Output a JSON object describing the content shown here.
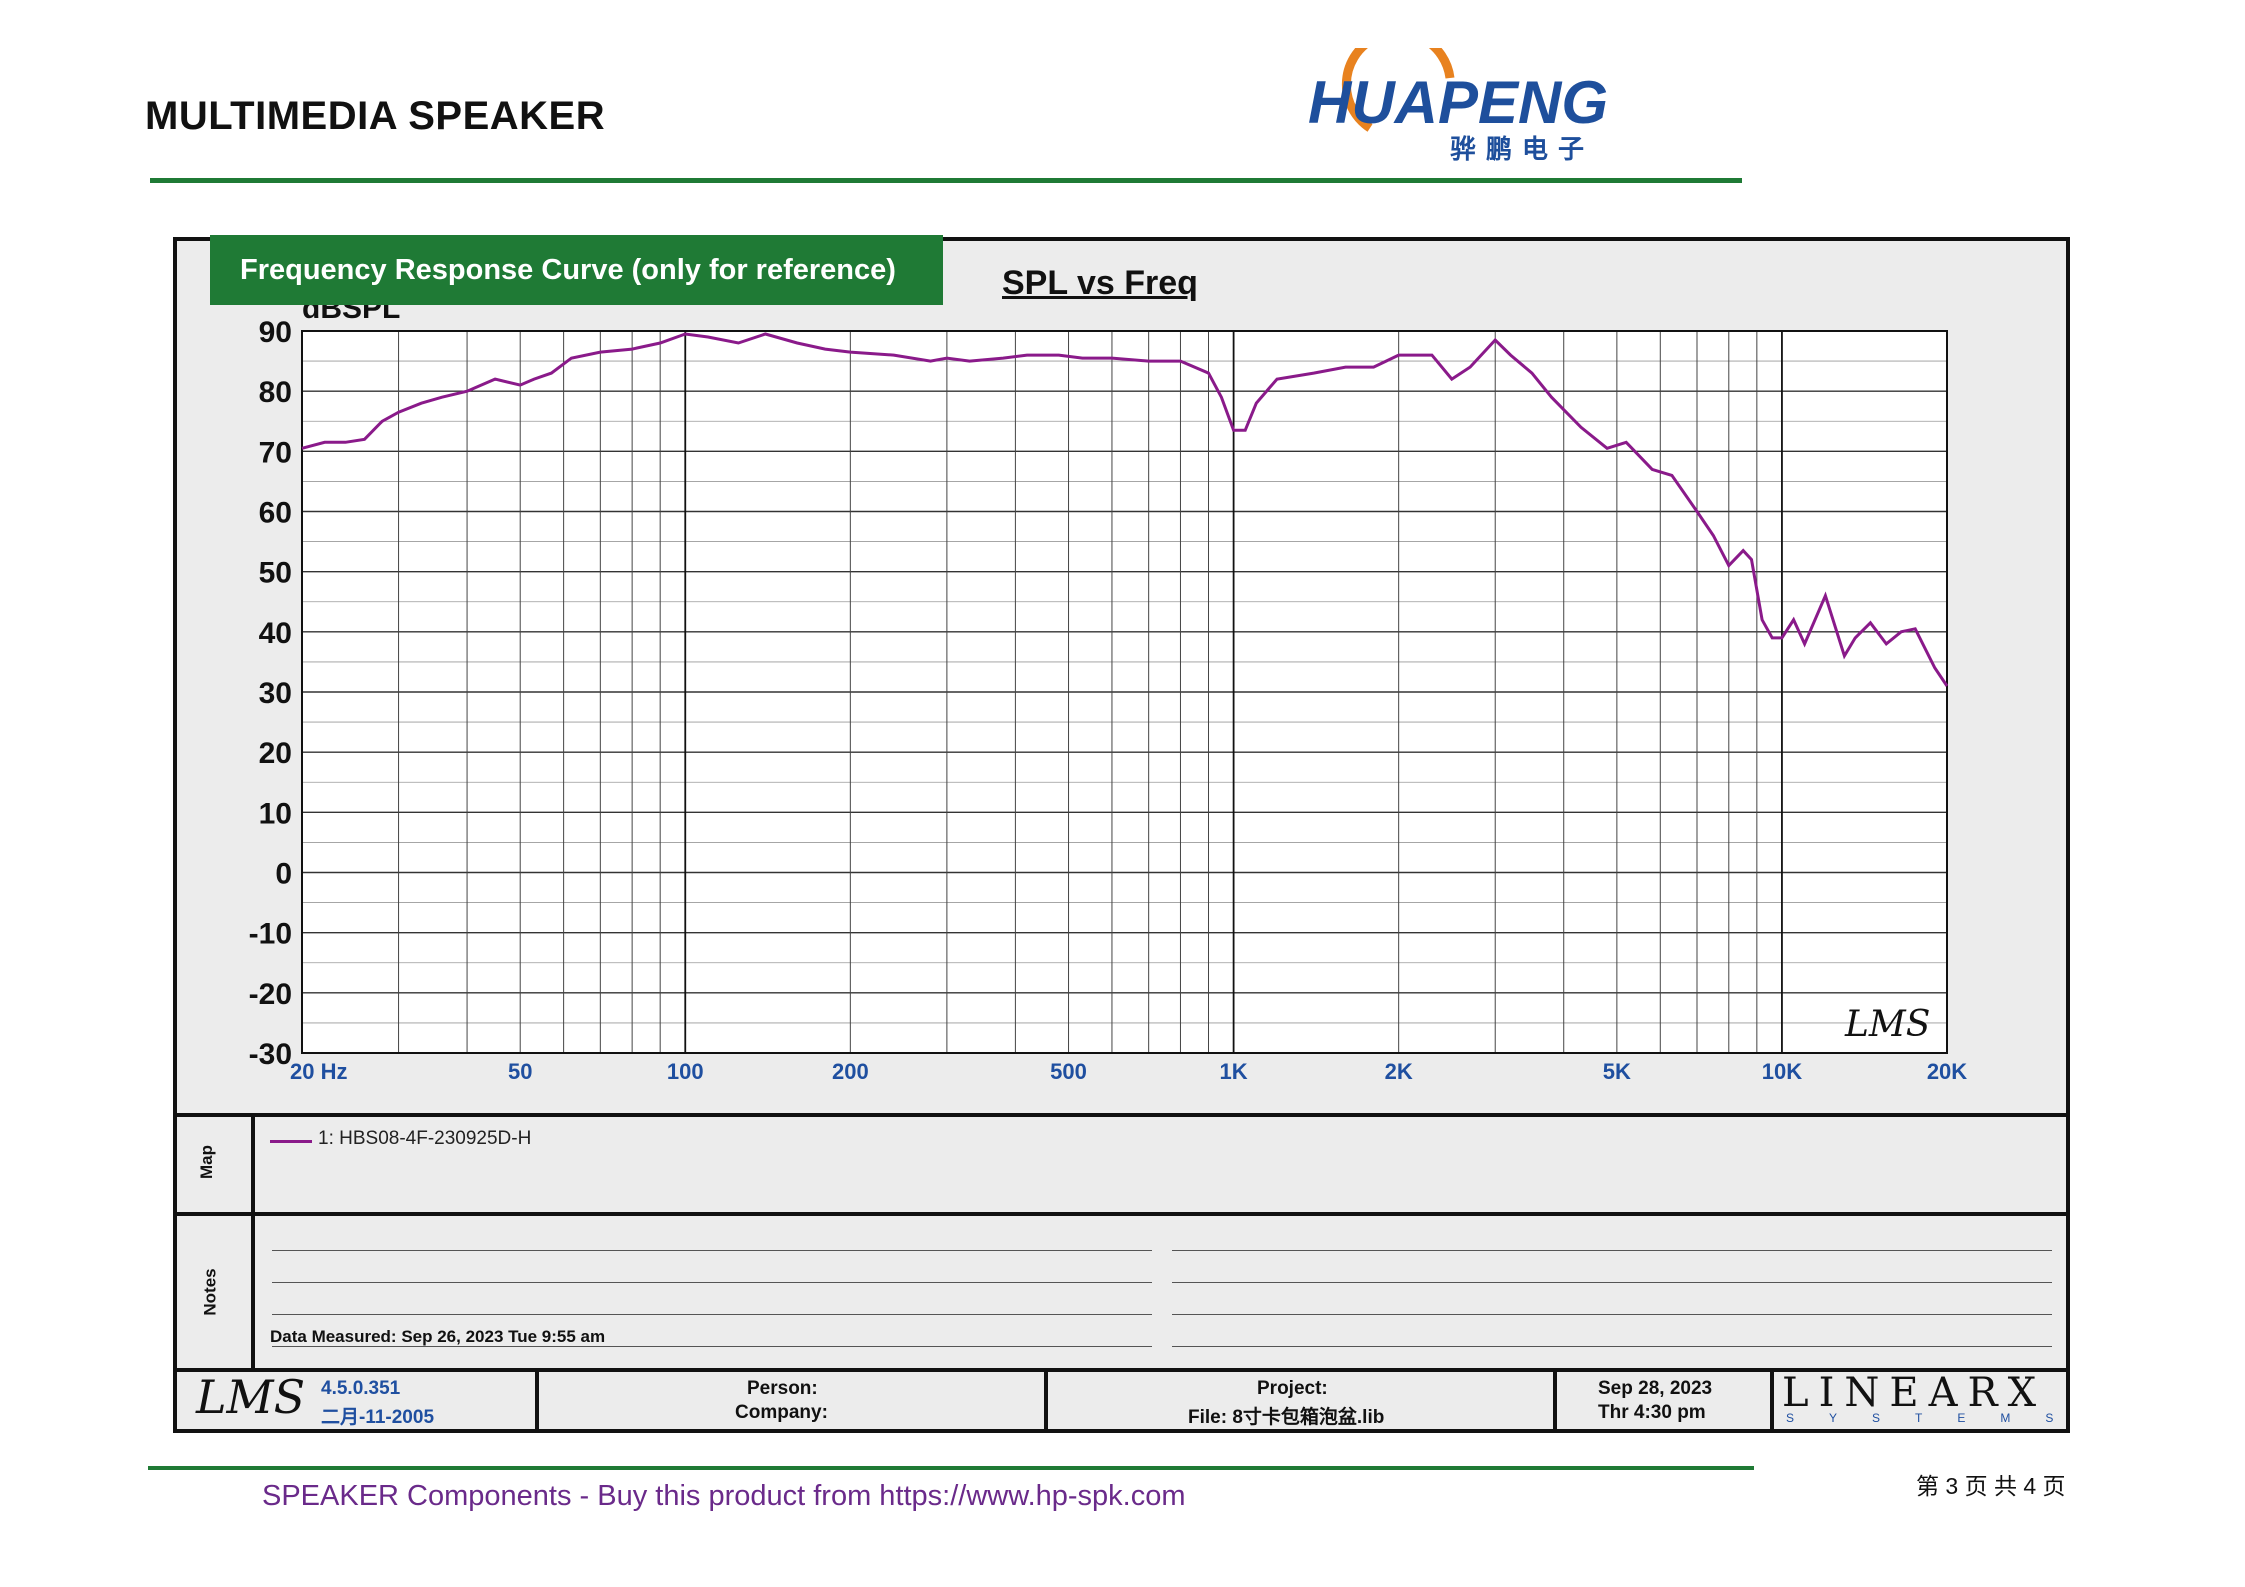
{
  "header": {
    "title": "MULTIMEDIA SPEAKER",
    "logo_text": "HUAPENG",
    "logo_cn": "骅鹏电子"
  },
  "badge": {
    "label": "Frequency Response Curve (only for reference)"
  },
  "chart_data": {
    "type": "line",
    "title": "SPL vs Freq",
    "ylabel": "dBSPL",
    "xlabel": "",
    "x_scale": "log",
    "xlim": [
      20,
      20000
    ],
    "ylim": [
      -30,
      90
    ],
    "x_tick_labels": [
      "20  Hz",
      "50",
      "100",
      "200",
      "500",
      "1K",
      "2K",
      "5K",
      "10K",
      "20K"
    ],
    "y_tick_labels": [
      "90",
      "80",
      "70",
      "60",
      "50",
      "40",
      "30",
      "20",
      "10",
      "0",
      "-10",
      "-20",
      "-30"
    ],
    "grid": true,
    "series": [
      {
        "name": "1: HBS08-4F-230925D-H",
        "color": "#8a1a8a",
        "x": [
          20,
          22,
          24,
          26,
          28,
          30,
          33,
          36,
          40,
          45,
          50,
          53,
          57,
          62,
          70,
          80,
          90,
          100,
          110,
          125,
          140,
          160,
          180,
          200,
          240,
          280,
          300,
          330,
          380,
          420,
          480,
          530,
          600,
          700,
          800,
          900,
          950,
          1000,
          1050,
          1100,
          1200,
          1400,
          1600,
          1800,
          2000,
          2300,
          2500,
          2700,
          3000,
          3200,
          3500,
          3800,
          4300,
          4800,
          5200,
          5800,
          6300,
          7000,
          7500,
          8000,
          8500,
          8800,
          9200,
          9600,
          10000,
          10500,
          11000,
          12000,
          13000,
          13600,
          14500,
          15500,
          16500,
          17500,
          19000,
          20000
        ],
        "y": [
          70.5,
          71.5,
          71.5,
          72,
          75,
          76.5,
          78,
          79,
          80,
          82,
          81,
          82,
          83,
          85.5,
          86.5,
          87,
          88,
          89.5,
          89,
          88,
          89.5,
          88,
          87,
          86.5,
          86,
          85,
          85.5,
          85,
          85.5,
          86,
          86,
          85.5,
          85.5,
          85,
          85,
          83,
          79,
          73.5,
          73.5,
          78,
          82,
          83,
          84,
          84,
          86,
          86,
          82,
          84,
          88.5,
          86,
          83,
          79,
          74,
          70.5,
          71.5,
          67,
          66,
          60,
          56,
          51,
          53.5,
          52,
          42,
          39,
          39,
          42,
          38,
          46,
          36,
          39,
          41.5,
          38,
          40,
          40.5,
          34,
          31
        ]
      }
    ]
  },
  "legend": {
    "map_label": "Map",
    "entry": "1: HBS08-4F-230925D-H"
  },
  "notes": {
    "label": "Notes",
    "measured": "Data Measured: Sep 26, 2023  Tue  9:55 am"
  },
  "footer_info": {
    "version": "4.5.0.351",
    "version_date": "二月-11-2005",
    "person": "Person:",
    "company": "Company:",
    "project": "Project:",
    "file": "File: 8寸卡包箱泡盆.lib",
    "date": "Sep 28, 2023",
    "time": "Thr  4:30 pm",
    "lms": "LMS",
    "linearx": "LINEARX",
    "systems": "SYSTEMS"
  },
  "watermark": {
    "text": "HUAPENG",
    "cn": "骅  鹏  电  子"
  },
  "footer": {
    "text": "SPEAKER Components - Buy this product from  https://www.hp-spk.com",
    "page_number": "第 3 页 共 4 页"
  },
  "colors": {
    "brand_green": "#1f7a35",
    "curve": "#8a1a8a",
    "tick_blue": "#1f4fa0",
    "footer_purple": "#6a2a8a"
  }
}
